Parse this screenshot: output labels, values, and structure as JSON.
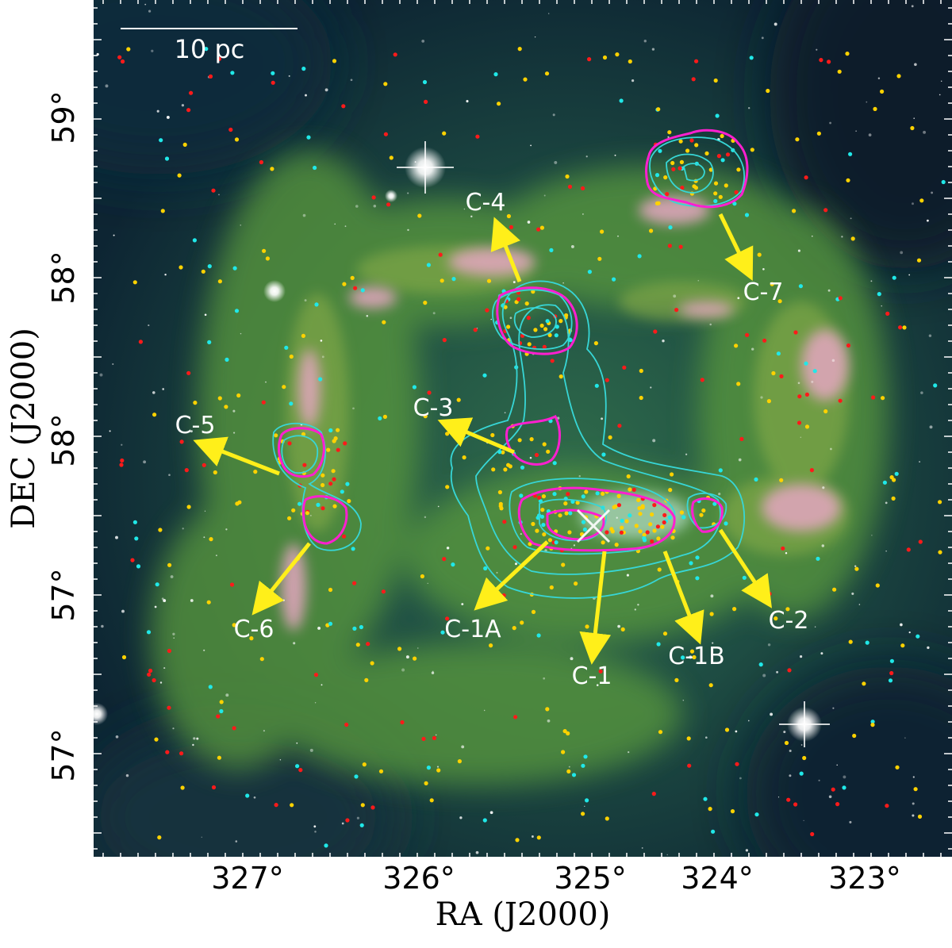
{
  "figure": {
    "scale_bar_label": "10 pc",
    "x_axis_label": "RA (J2000)",
    "y_axis_label": "DEC (J2000)",
    "x_ticks": [
      "327°",
      "326°",
      "325°",
      "324°",
      "323°"
    ],
    "y_ticks": [
      "59°",
      "58°",
      "58°",
      "57°",
      "57°"
    ],
    "clusters": [
      "C-1",
      "C-1A",
      "C-1B",
      "C-2",
      "C-3",
      "C-4",
      "C-5",
      "C-6",
      "C-7"
    ],
    "colors": {
      "background_deep": "#0e2a3a",
      "nebula_green": "#4a8a3a",
      "nebula_pink": "#d79ab0",
      "contour_cyan": "#37d6d6",
      "contour_magenta": "#ff1fd0",
      "arrow_yellow": "#ffef1a",
      "dot_red": "#ff1a1a",
      "dot_yellow": "#ffd200",
      "dot_cyan": "#20e8e8",
      "label_white": "#ffffff"
    }
  }
}
